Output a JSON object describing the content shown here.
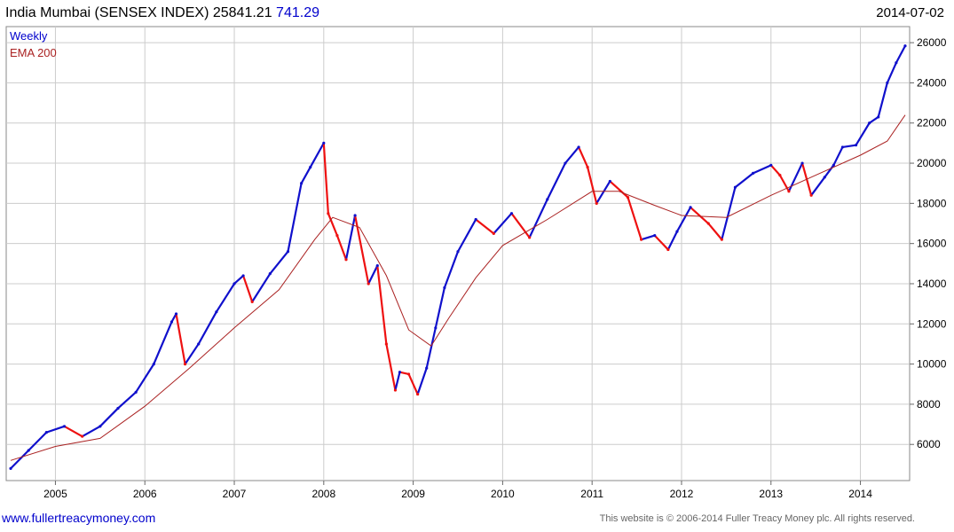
{
  "header": {
    "title": "India Mumbai (SENSEX INDEX) 25841.21",
    "change": "741.29",
    "date": "2014-07-02"
  },
  "legend": {
    "weekly": "Weekly",
    "ema": "EMA 200"
  },
  "footer": {
    "left": "www.fullertreacymoney.com",
    "right": "This website is © 2006-2014 Fuller Treacy Money plc. All rights reserved."
  },
  "colors": {
    "up": "#1010cc",
    "down": "#ee1111",
    "ema": "#aa2222",
    "grid": "#cccccc"
  },
  "chart_data": {
    "type": "line",
    "x_tick_labels": [
      "2005",
      "2006",
      "2007",
      "2008",
      "2009",
      "2010",
      "2011",
      "2012",
      "2013",
      "2014"
    ],
    "y_tick_labels": [
      "6000",
      "8000",
      "10000",
      "12000",
      "14000",
      "16000",
      "18000",
      "20000",
      "22000",
      "24000",
      "26000"
    ],
    "ylim": [
      4200,
      26800
    ],
    "xlim": [
      2004.45,
      2014.55
    ],
    "grid": true,
    "legend_position": "top-left",
    "series": [
      {
        "name": "Weekly",
        "x": [
          2004.5,
          2004.7,
          2004.9,
          2005.1,
          2005.3,
          2005.5,
          2005.7,
          2005.9,
          2006.1,
          2006.3,
          2006.35,
          2006.45,
          2006.6,
          2006.8,
          2007.0,
          2007.1,
          2007.2,
          2007.4,
          2007.6,
          2007.75,
          2007.85,
          2008.0,
          2008.05,
          2008.15,
          2008.25,
          2008.35,
          2008.5,
          2008.6,
          2008.7,
          2008.8,
          2008.85,
          2008.95,
          2009.05,
          2009.15,
          2009.25,
          2009.35,
          2009.5,
          2009.7,
          2009.9,
          2010.1,
          2010.3,
          2010.5,
          2010.7,
          2010.85,
          2010.95,
          2011.05,
          2011.2,
          2011.4,
          2011.55,
          2011.7,
          2011.85,
          2011.95,
          2012.1,
          2012.3,
          2012.45,
          2012.6,
          2012.8,
          2013.0,
          2013.1,
          2013.2,
          2013.35,
          2013.45,
          2013.6,
          2013.7,
          2013.8,
          2013.95,
          2014.1,
          2014.2,
          2014.3,
          2014.4,
          2014.5
        ],
        "y": [
          4800,
          5700,
          6600,
          6900,
          6400,
          6900,
          7800,
          8600,
          10000,
          12100,
          12500,
          10000,
          11000,
          12600,
          14000,
          14400,
          13100,
          14500,
          15600,
          19000,
          19800,
          21000,
          17500,
          16400,
          15200,
          17400,
          14000,
          14900,
          11000,
          8700,
          9600,
          9500,
          8500,
          9800,
          11800,
          13800,
          15600,
          17200,
          16500,
          17500,
          16300,
          18200,
          20000,
          20800,
          19800,
          18000,
          19100,
          18300,
          16200,
          16400,
          15700,
          16600,
          17800,
          17000,
          16200,
          18800,
          19500,
          19900,
          19400,
          18600,
          20000,
          18400,
          19300,
          19900,
          20800,
          20900,
          22000,
          22300,
          24000,
          25000,
          25841
        ]
      },
      {
        "name": "EMA 200",
        "x": [
          2004.5,
          2005.0,
          2005.5,
          2006.0,
          2006.5,
          2007.0,
          2007.5,
          2007.9,
          2008.1,
          2008.4,
          2008.7,
          2008.95,
          2009.2,
          2009.4,
          2009.7,
          2010.0,
          2010.5,
          2011.0,
          2011.3,
          2011.7,
          2012.0,
          2012.5,
          2013.0,
          2013.5,
          2014.0,
          2014.3,
          2014.5
        ],
        "y": [
          5200,
          5900,
          6300,
          7900,
          9800,
          11800,
          13700,
          16200,
          17300,
          16800,
          14400,
          11700,
          10900,
          12300,
          14300,
          15900,
          17200,
          18600,
          18600,
          17900,
          17400,
          17300,
          18400,
          19400,
          20400,
          21100,
          22400
        ]
      }
    ]
  }
}
